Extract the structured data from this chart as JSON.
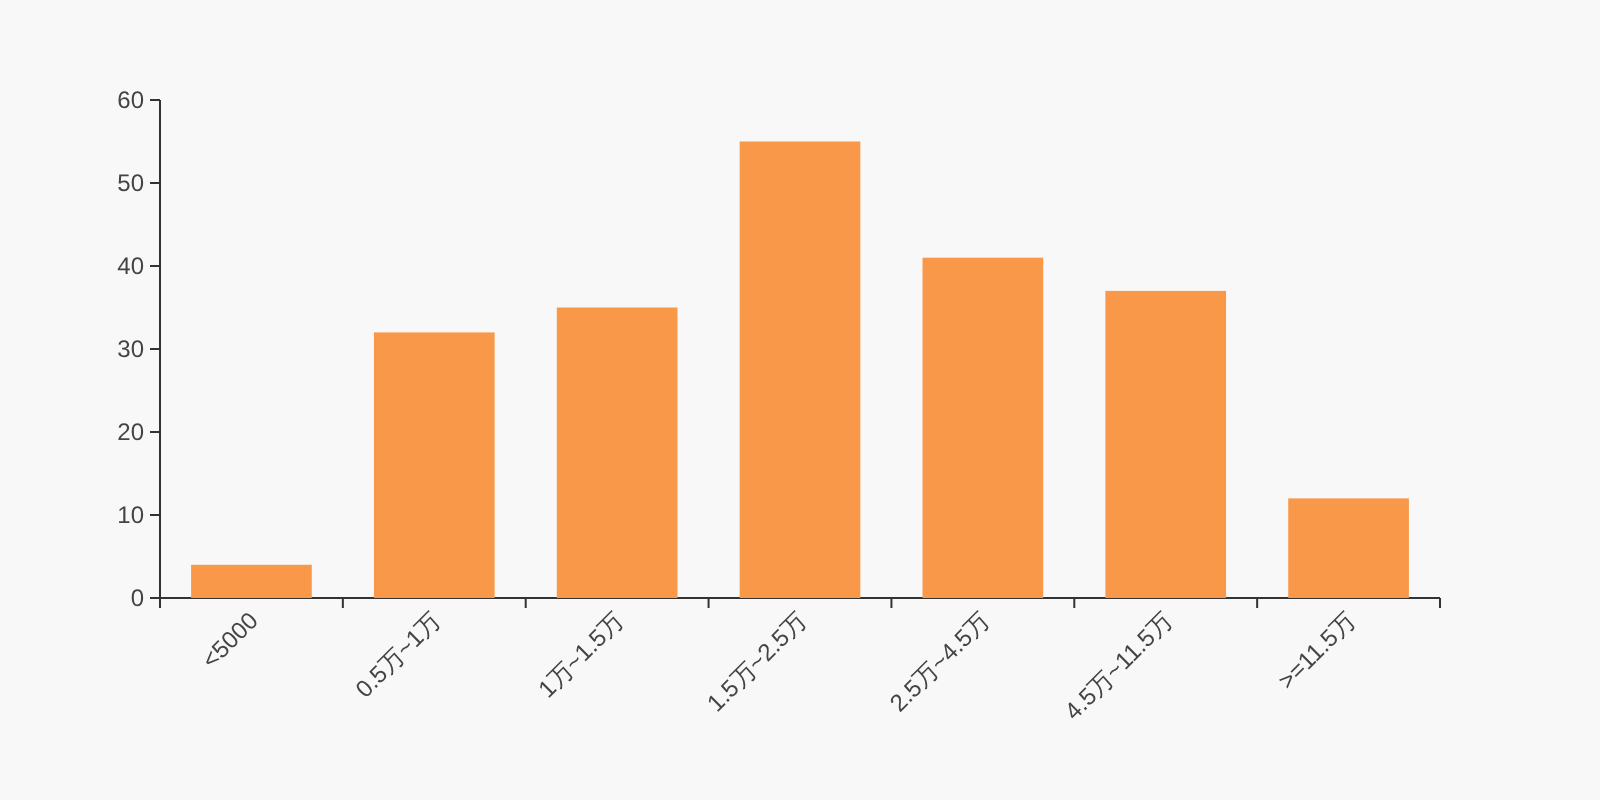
{
  "chart_data": {
    "type": "bar",
    "categories": [
      "<5000",
      "0.5万~1万",
      "1万~1.5万",
      "1.5万~2.5万",
      "2.5万~4.5万",
      "4.5万~11.5万",
      ">=11.5万"
    ],
    "values": [
      4,
      32,
      35,
      55,
      41,
      37,
      12
    ],
    "color": "#f89848",
    "ylim": [
      0,
      60
    ],
    "yticks": [
      0,
      10,
      20,
      30,
      40,
      50,
      60
    ]
  }
}
